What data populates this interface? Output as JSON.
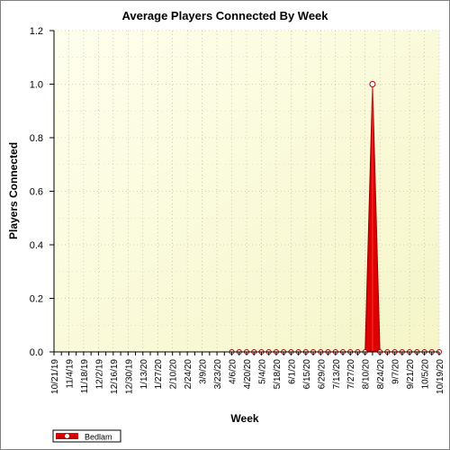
{
  "chart_data": {
    "type": "area",
    "title": "Average Players Connected By Week",
    "xlabel": "Week",
    "ylabel": "Players Connected",
    "ylim": [
      0,
      1.2
    ],
    "yticks": [
      "0.0",
      "0.2",
      "0.4",
      "0.6",
      "0.8",
      "1.0",
      "1.2"
    ],
    "grid": true,
    "legend_position": "bottom-left",
    "colors": {
      "series": "#dd0000",
      "plot_bg_top": "#ffffee",
      "plot_bg_bottom": "#f5f5c8"
    },
    "x_tick_labels": [
      "10/21/19",
      "11/4/19",
      "11/18/19",
      "12/2/19",
      "12/16/19",
      "12/30/19",
      "1/13/20",
      "1/27/20",
      "2/10/20",
      "2/24/20",
      "3/9/20",
      "3/23/20",
      "4/6/20",
      "4/20/20",
      "5/4/20",
      "5/18/20",
      "6/1/20",
      "6/15/20",
      "6/29/20",
      "7/13/20",
      "7/27/20",
      "8/10/20",
      "8/24/20",
      "9/7/20",
      "9/21/20",
      "10/5/20",
      "10/19/20"
    ],
    "x": [
      "10/21/19",
      "10/28/19",
      "11/4/19",
      "11/11/19",
      "11/18/19",
      "11/25/19",
      "12/2/19",
      "12/9/19",
      "12/16/19",
      "12/23/19",
      "12/30/19",
      "1/6/20",
      "1/13/20",
      "1/20/20",
      "1/27/20",
      "2/3/20",
      "2/10/20",
      "2/17/20",
      "2/24/20",
      "3/2/20",
      "3/9/20",
      "3/16/20",
      "3/23/20",
      "3/30/20",
      "4/6/20",
      "4/13/20",
      "4/20/20",
      "4/27/20",
      "5/4/20",
      "5/11/20",
      "5/18/20",
      "5/25/20",
      "6/1/20",
      "6/8/20",
      "6/15/20",
      "6/22/20",
      "6/29/20",
      "7/6/20",
      "7/13/20",
      "7/20/20",
      "7/27/20",
      "8/3/20",
      "8/10/20",
      "8/17/20",
      "8/24/20",
      "8/31/20",
      "9/7/20",
      "9/14/20",
      "9/21/20",
      "9/28/20",
      "10/5/20",
      "10/12/20",
      "10/19/20"
    ],
    "series": [
      {
        "name": "Bedlam",
        "first_point_index": 24,
        "values": [
          null,
          null,
          null,
          null,
          null,
          null,
          null,
          null,
          null,
          null,
          null,
          null,
          null,
          null,
          null,
          null,
          null,
          null,
          null,
          null,
          null,
          null,
          null,
          null,
          0,
          0,
          0,
          0,
          0,
          0,
          0,
          0,
          0,
          0,
          0,
          0,
          0,
          0,
          0,
          0,
          0,
          0,
          0,
          1.0,
          0,
          0,
          0,
          0,
          0,
          0,
          0,
          0,
          0
        ]
      }
    ]
  }
}
